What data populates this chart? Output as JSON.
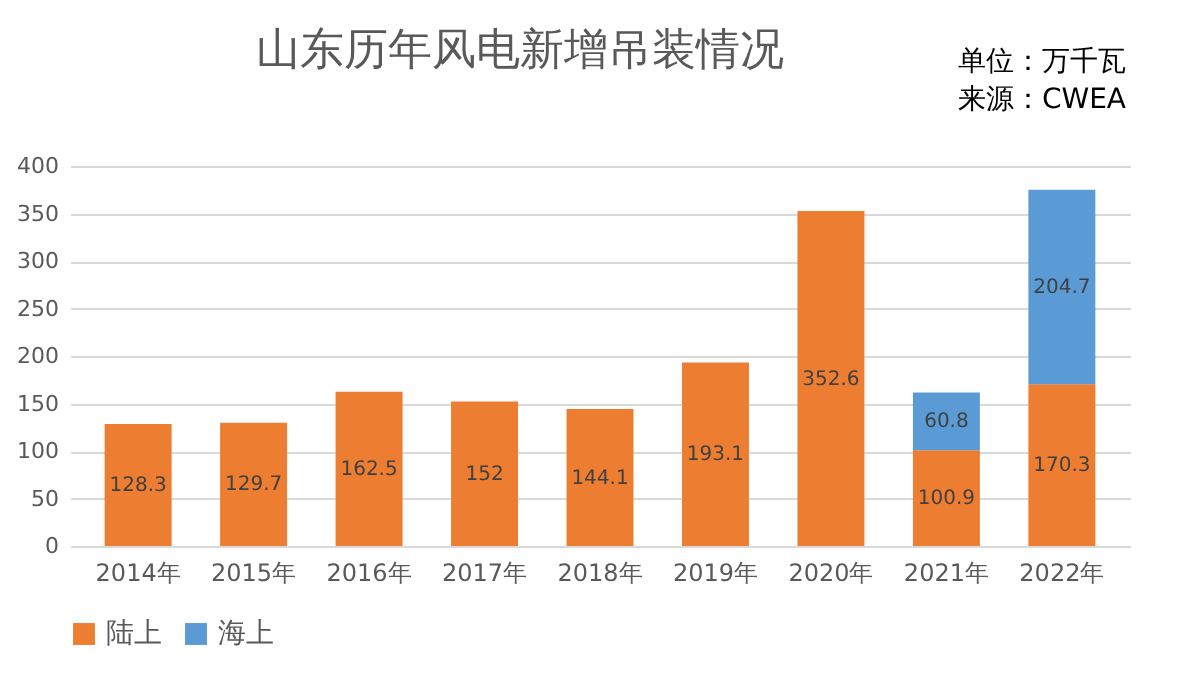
{
  "chart_data": {
    "type": "bar",
    "title": "山东历年风电新增吊装情况",
    "annotations": [
      "单位：万千瓦",
      "来源：CWEA"
    ],
    "categories": [
      "2014年",
      "2015年",
      "2016年",
      "2017年",
      "2018年",
      "2019年",
      "2020年",
      "2021年",
      "2022年"
    ],
    "series": [
      {
        "name": "陆上",
        "color": "#ed7d31",
        "values": [
          128.3,
          129.7,
          162.5,
          152,
          144.1,
          193.1,
          352.6,
          100.9,
          170.3
        ]
      },
      {
        "name": "海上",
        "color": "#5b9bd5",
        "values": [
          null,
          null,
          null,
          null,
          null,
          null,
          null,
          60.8,
          204.7
        ]
      }
    ],
    "stacked": true,
    "data_labels": true,
    "ylim": [
      0,
      400
    ],
    "yticks": [
      0,
      50,
      100,
      150,
      200,
      250,
      300,
      350,
      400
    ],
    "grid": "y",
    "legend": "bottom"
  }
}
